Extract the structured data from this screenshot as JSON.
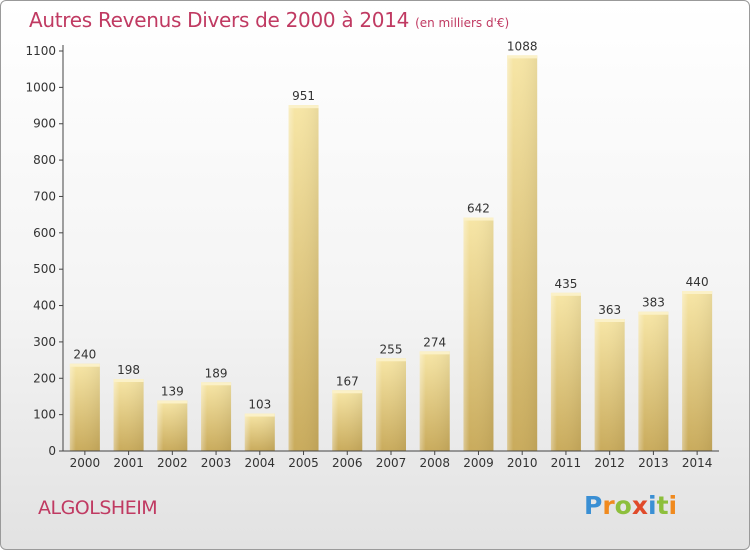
{
  "chart_data": {
    "type": "bar",
    "title": "Autres Revenus Divers de 2000 à 2014",
    "unit_label": "(en milliers d'€)",
    "categories": [
      "2000",
      "2001",
      "2002",
      "2003",
      "2004",
      "2005",
      "2006",
      "2007",
      "2008",
      "2009",
      "2010",
      "2011",
      "2012",
      "2013",
      "2014"
    ],
    "values": [
      240,
      198,
      139,
      189,
      103,
      951,
      167,
      255,
      274,
      642,
      1088,
      435,
      363,
      383,
      440
    ],
    "ylim": [
      0,
      1100
    ],
    "yticks": [
      0,
      100,
      200,
      300,
      400,
      500,
      600,
      700,
      800,
      900,
      1000,
      1100
    ],
    "grid": false,
    "bar_color": "#e9cf85",
    "title_color": "#c03a62"
  },
  "footer": {
    "commune": "ALGOLSHEIM",
    "logo": {
      "letters": [
        "P",
        "r",
        "o",
        "x",
        "i",
        "t",
        "i"
      ],
      "colors": [
        "#3a8fd4",
        "#f08a1e",
        "#8dbf3c",
        "#e04a2a",
        "#3a8fd4",
        "#8dbf3c",
        "#f08a1e"
      ]
    }
  }
}
